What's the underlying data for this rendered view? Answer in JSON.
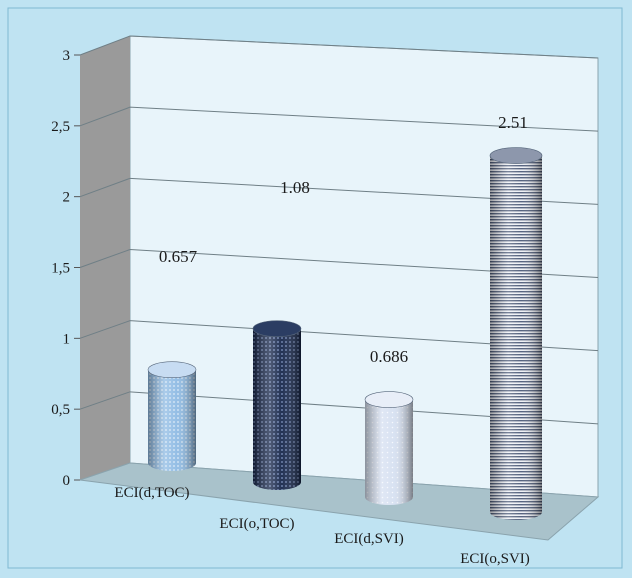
{
  "chart_data": {
    "type": "bar",
    "style": "3d-cylinder",
    "categories": [
      "ECI(d,TOC)",
      "ECI(o,TOC)",
      "ECI(d,SVI)",
      "ECI(o,SVI)"
    ],
    "values": [
      0.657,
      1.08,
      0.686,
      2.51
    ],
    "data_labels": [
      "0.657",
      "1.08",
      "0.686",
      "2.51"
    ],
    "y_ticks": [
      "0",
      "0,5",
      "1",
      "1,5",
      "2",
      "2,5",
      "3"
    ],
    "ylim": [
      0,
      3
    ],
    "grid": true,
    "legend": "none",
    "title": "",
    "xlabel": "",
    "ylabel": "",
    "colors": {
      "background": "#bfe3f2",
      "wall": "#e8f4fa",
      "side_wall": "#9a9a9a",
      "floor": "#a9c2cb",
      "bar_1": "#9ec6ea",
      "bar_2": "#1c2f52",
      "bar_3": "#dde6f4",
      "bar_4": "#5d6b88"
    }
  }
}
